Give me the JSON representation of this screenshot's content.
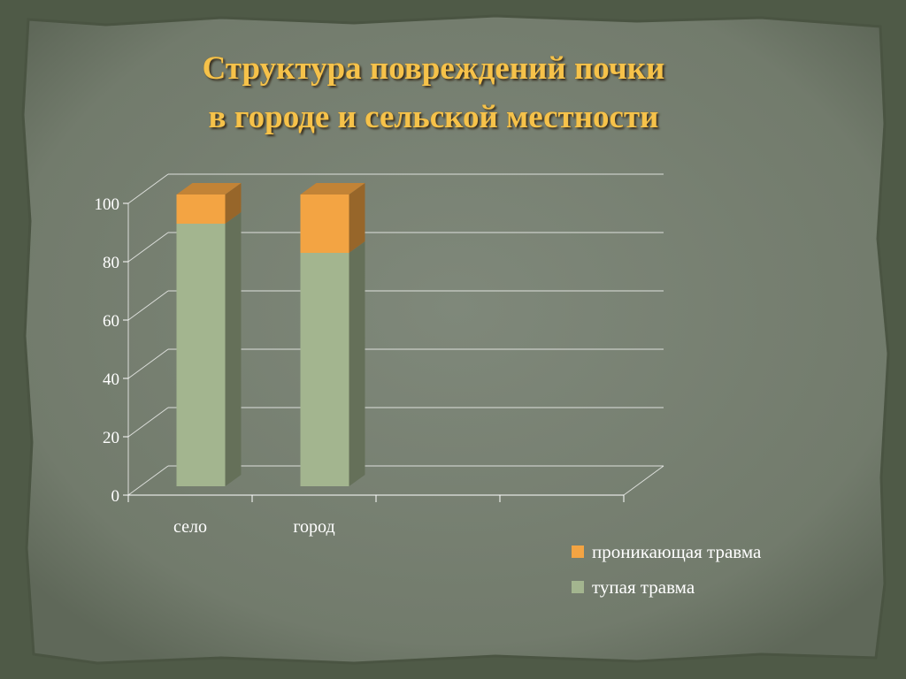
{
  "title_lines": [
    "Структура повреждений почки",
    "в городе и сельской местности"
  ],
  "colors": {
    "background": "#4f5a47",
    "slide": "#7b8477",
    "title": "#f6c24a",
    "blunt": "#a3b58f",
    "penetrating": "#f3a443",
    "grid": "#ffffff"
  },
  "chart_data": {
    "type": "bar",
    "stacked": true,
    "three_d": true,
    "title": "Структура повреждений почки в городе и сельской местности",
    "categories": [
      "село",
      "город"
    ],
    "category_slots": 4,
    "series": [
      {
        "name": "тупая травма",
        "values": [
          90,
          80
        ],
        "color": "#a3b58f"
      },
      {
        "name": "проникающая травма",
        "values": [
          10,
          20
        ],
        "color": "#f3a443"
      }
    ],
    "ylim": [
      0,
      100
    ],
    "yticks": [
      "0",
      "20",
      "40",
      "60",
      "80",
      "100"
    ],
    "grid": true,
    "legend_position": "bottom-right"
  },
  "legend": [
    {
      "label": "проникающая травма",
      "color": "#f3a443"
    },
    {
      "label": "тупая травма",
      "color": "#a3b58f"
    }
  ]
}
